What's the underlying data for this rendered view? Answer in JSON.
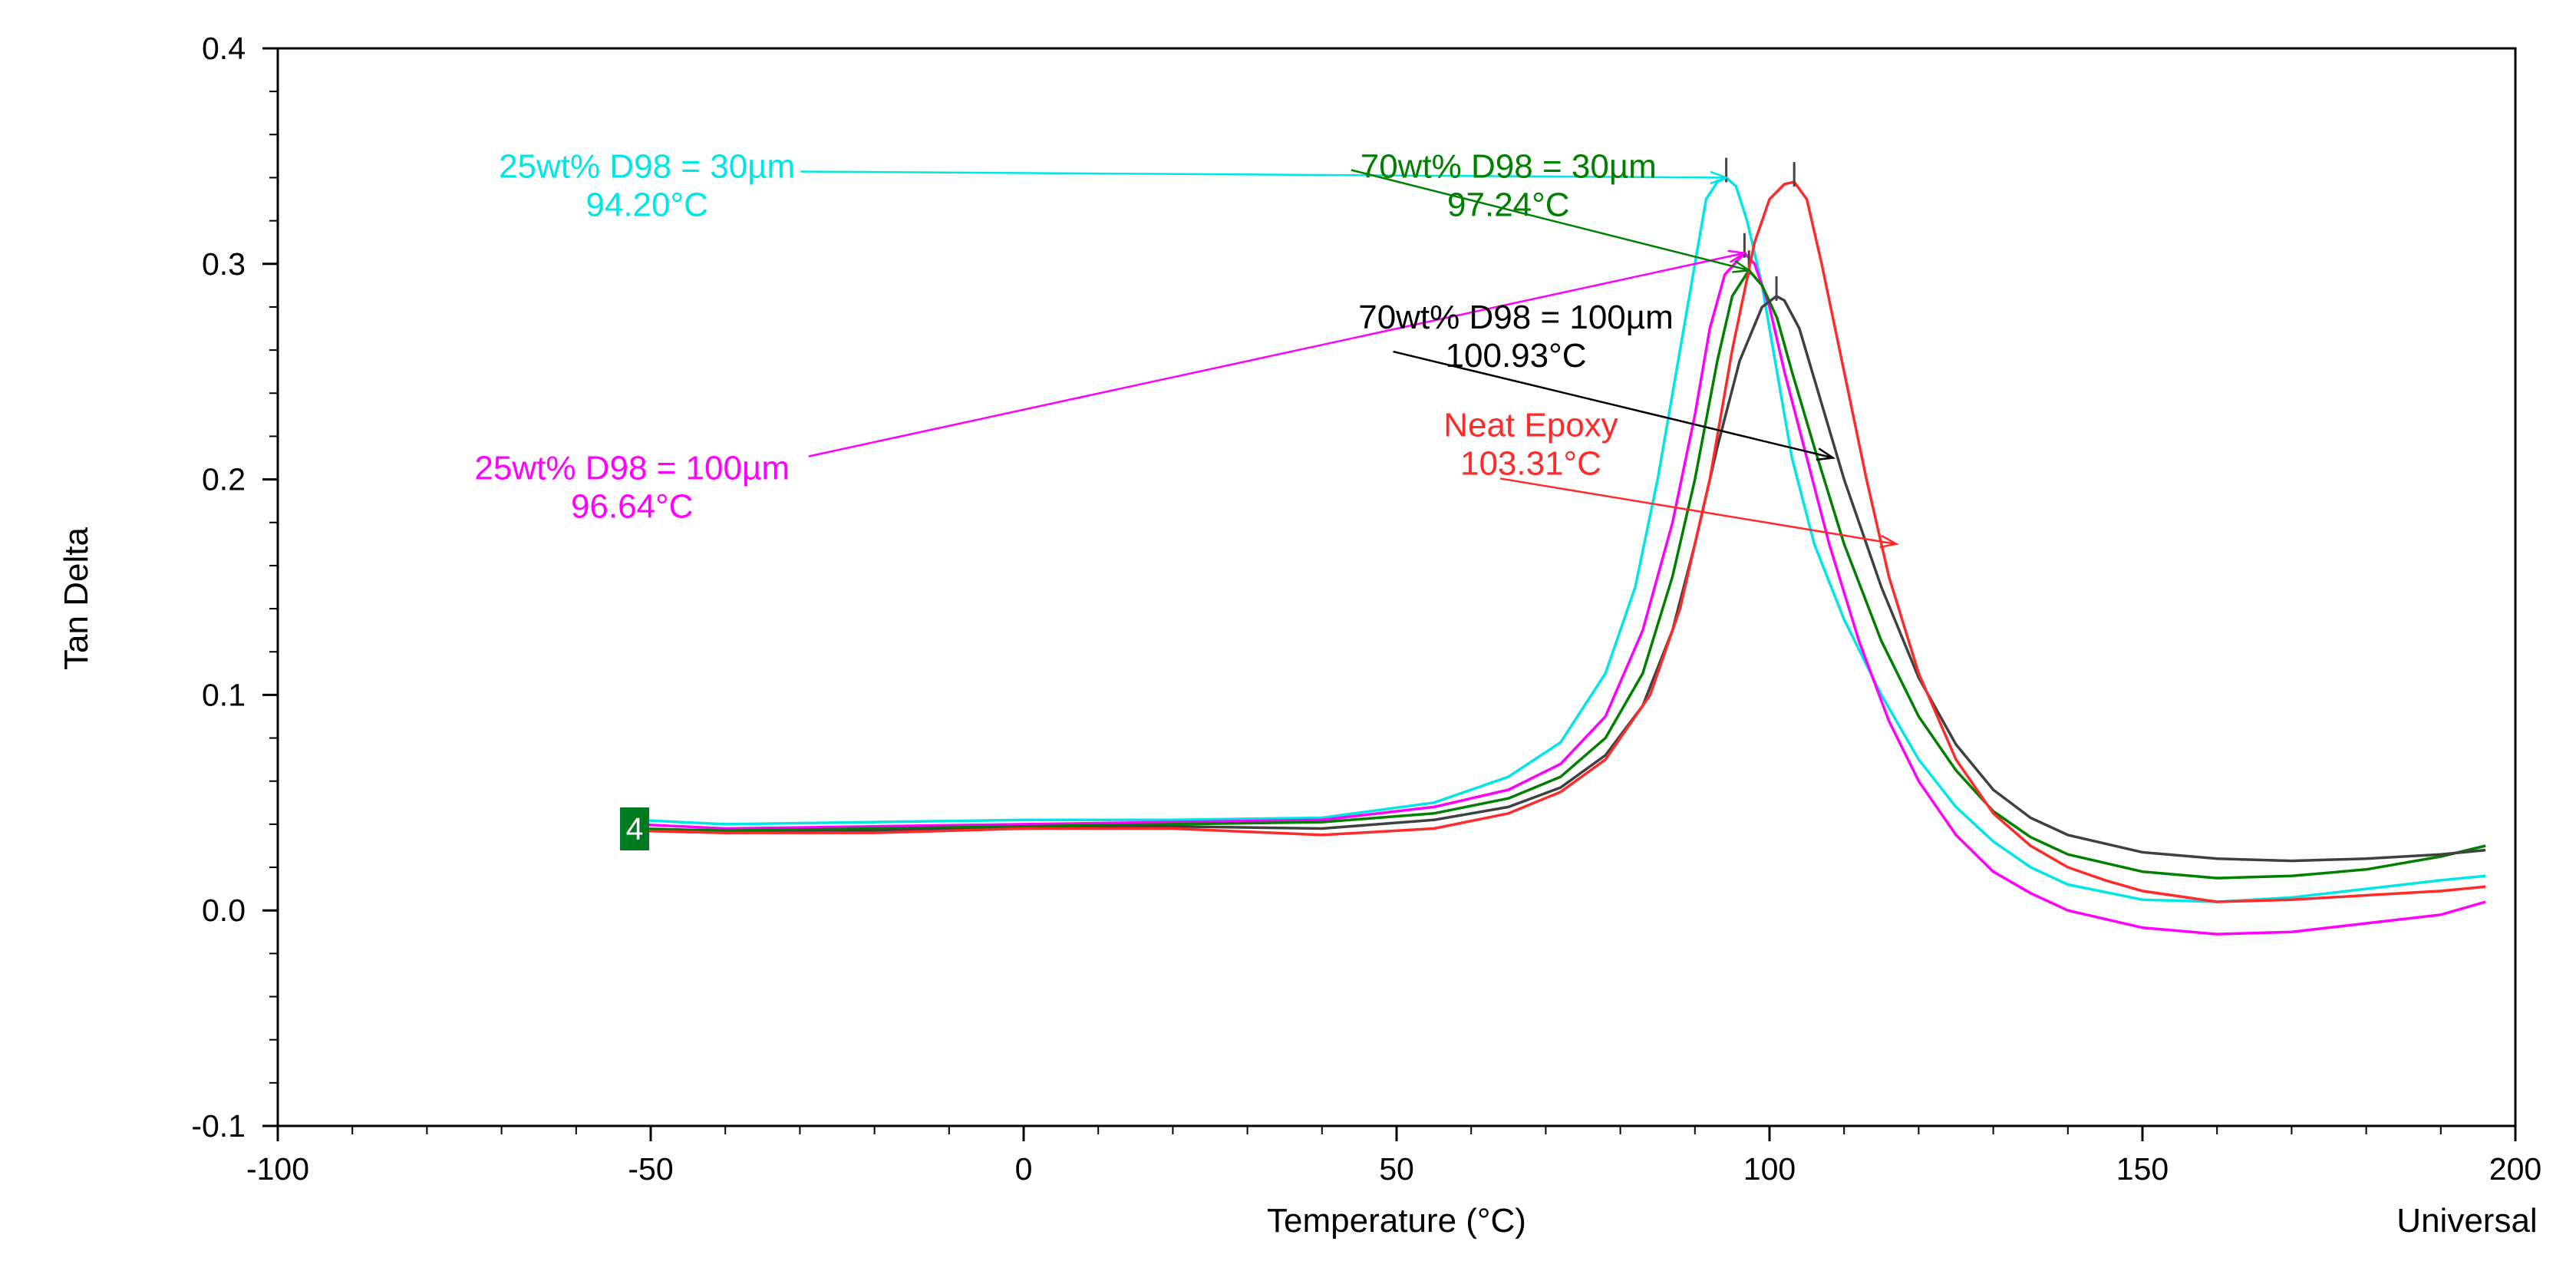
{
  "chart_data": {
    "type": "line",
    "title": "",
    "xlabel": "Temperature (°C)",
    "ylabel": "Tan Delta",
    "corner_label": "Universal",
    "marker_label": "4",
    "xlim": [
      -100,
      200
    ],
    "ylim": [
      -0.1,
      0.4
    ],
    "x_ticks": [
      -100,
      -50,
      0,
      50,
      100,
      150,
      200
    ],
    "x_tick_labels": [
      "-100",
      "-50",
      "0",
      "50",
      "100",
      "150",
      "200"
    ],
    "y_ticks": [
      -0.1,
      0.0,
      0.1,
      0.2,
      0.3,
      0.4
    ],
    "y_tick_labels": [
      "-0.1",
      "0.0",
      "0.1",
      "0.2",
      "0.3",
      "0.4"
    ],
    "grid": false,
    "series": [
      {
        "name": "25wt% D98 = 30µm",
        "color": "#00e5e5",
        "peak": [
          94.2,
          0.34
        ],
        "x": [
          -52,
          -40,
          -20,
          0,
          20,
          40,
          55,
          65,
          72,
          78,
          82,
          85,
          88,
          90,
          91.5,
          93,
          94.2,
          95.5,
          97,
          99,
          101,
          103,
          106,
          110,
          115,
          120,
          125,
          130,
          135,
          140,
          150,
          160,
          170,
          180,
          190,
          196
        ],
        "y": [
          0.042,
          0.04,
          0.041,
          0.042,
          0.042,
          0.043,
          0.05,
          0.062,
          0.078,
          0.11,
          0.15,
          0.2,
          0.26,
          0.3,
          0.33,
          0.338,
          0.34,
          0.336,
          0.32,
          0.29,
          0.25,
          0.21,
          0.17,
          0.135,
          0.1,
          0.07,
          0.048,
          0.032,
          0.02,
          0.012,
          0.005,
          0.004,
          0.006,
          0.01,
          0.014,
          0.016
        ]
      },
      {
        "name": "25wt% D98 = 100µm",
        "color": "#ff00ff",
        "peak": [
          96.64,
          0.305
        ],
        "x": [
          -52,
          -40,
          -20,
          0,
          20,
          40,
          55,
          65,
          72,
          78,
          83,
          87,
          90,
          92,
          94,
          96.64,
          98,
          100,
          102,
          105,
          108,
          112,
          116,
          120,
          125,
          130,
          135,
          140,
          150,
          160,
          170,
          180,
          190,
          196
        ],
        "y": [
          0.04,
          0.038,
          0.039,
          0.04,
          0.041,
          0.042,
          0.048,
          0.056,
          0.068,
          0.09,
          0.13,
          0.18,
          0.23,
          0.27,
          0.295,
          0.305,
          0.3,
          0.28,
          0.25,
          0.21,
          0.17,
          0.125,
          0.088,
          0.06,
          0.035,
          0.018,
          0.008,
          0.0,
          -0.008,
          -0.011,
          -0.01,
          -0.006,
          -0.002,
          0.004
        ]
      },
      {
        "name": "70wt% D98 = 30µm",
        "color": "#008000",
        "peak": [
          97.24,
          0.297
        ],
        "x": [
          -52,
          -40,
          -20,
          0,
          20,
          40,
          55,
          65,
          72,
          78,
          83,
          87,
          90,
          93,
          95,
          97.24,
          99,
          101,
          103,
          106,
          110,
          115,
          120,
          125,
          130,
          135,
          140,
          150,
          160,
          170,
          180,
          190,
          196
        ],
        "y": [
          0.038,
          0.037,
          0.038,
          0.039,
          0.04,
          0.041,
          0.045,
          0.052,
          0.062,
          0.08,
          0.11,
          0.155,
          0.2,
          0.255,
          0.285,
          0.297,
          0.29,
          0.275,
          0.25,
          0.215,
          0.17,
          0.125,
          0.09,
          0.065,
          0.046,
          0.034,
          0.026,
          0.018,
          0.015,
          0.016,
          0.019,
          0.025,
          0.03
        ]
      },
      {
        "name": "70wt% D98 = 100µm",
        "color": "#404040",
        "peak": [
          100.93,
          0.285
        ],
        "x": [
          -52,
          -40,
          -20,
          0,
          20,
          40,
          55,
          65,
          72,
          78,
          83,
          87,
          90,
          93,
          96,
          99,
          100.93,
          102,
          104,
          107,
          110,
          115,
          120,
          125,
          130,
          135,
          140,
          150,
          160,
          170,
          180,
          190,
          196
        ],
        "y": [
          0.037,
          0.036,
          0.037,
          0.038,
          0.039,
          0.038,
          0.042,
          0.048,
          0.057,
          0.072,
          0.095,
          0.13,
          0.17,
          0.215,
          0.255,
          0.28,
          0.285,
          0.283,
          0.27,
          0.235,
          0.2,
          0.15,
          0.108,
          0.077,
          0.056,
          0.043,
          0.035,
          0.027,
          0.024,
          0.023,
          0.024,
          0.026,
          0.028
        ]
      },
      {
        "name": "Neat Epoxy",
        "color": "#ff2a2a",
        "peak": [
          103.31,
          0.338
        ],
        "x": [
          -52,
          -40,
          -20,
          0,
          20,
          40,
          55,
          65,
          72,
          78,
          84,
          88,
          92,
          95,
          98,
          100,
          102,
          103.31,
          105,
          107,
          110,
          113,
          116,
          120,
          125,
          130,
          135,
          140,
          145,
          150,
          160,
          170,
          180,
          190,
          196
        ],
        "y": [
          0.037,
          0.036,
          0.036,
          0.038,
          0.038,
          0.035,
          0.038,
          0.045,
          0.055,
          0.07,
          0.1,
          0.14,
          0.2,
          0.26,
          0.31,
          0.33,
          0.337,
          0.338,
          0.33,
          0.3,
          0.25,
          0.2,
          0.155,
          0.11,
          0.07,
          0.045,
          0.03,
          0.02,
          0.014,
          0.009,
          0.004,
          0.005,
          0.007,
          0.009,
          0.011
        ]
      }
    ],
    "annotations": [
      {
        "series": 0,
        "lines": [
          "25wt% D98 = 30µm",
          "94.20°C"
        ],
        "color": "#00e5e5",
        "at": [
          -50.5,
          0.34
        ]
      },
      {
        "series": 1,
        "lines": [
          "25wt% D98 = 100µm",
          "96.64°C"
        ],
        "color": "#ff00ff",
        "at": [
          -52.5,
          0.2
        ]
      },
      {
        "series": 2,
        "lines": [
          "70wt% D98 = 30µm",
          "97.24°C"
        ],
        "color": "#008000",
        "at": [
          65.0,
          0.34
        ]
      },
      {
        "series": 3,
        "lines": [
          "70wt% D98 = 100µm",
          "100.93°C"
        ],
        "color": "#000000",
        "at": [
          66.0,
          0.27
        ]
      },
      {
        "series": 4,
        "lines": [
          "Neat Epoxy",
          "103.31°C"
        ],
        "color": "#ff2a2a",
        "at": [
          68.0,
          0.22
        ]
      }
    ]
  }
}
